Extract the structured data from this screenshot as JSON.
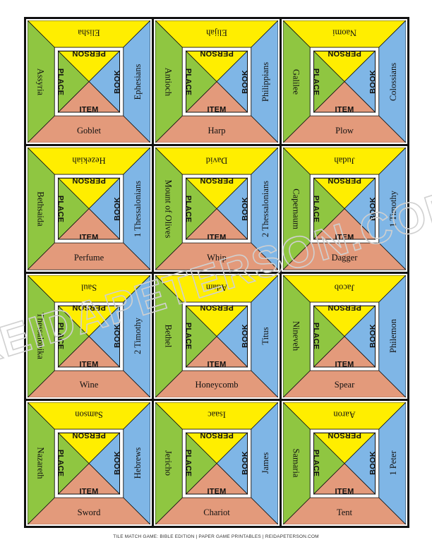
{
  "categories": {
    "person": "PERSON",
    "place": "PLACE",
    "book": "BOOK",
    "item": "ITEM"
  },
  "colors": {
    "person": "#ffee00",
    "place": "#8fc641",
    "book": "#7fb6e6",
    "item": "#e39a7b"
  },
  "tiles": [
    {
      "top": "Elisha",
      "left": "Assyria",
      "right": "Ephesians",
      "bottom": "Goblet"
    },
    {
      "top": "Elijah",
      "left": "Antioch",
      "right": "Philippians",
      "bottom": "Harp"
    },
    {
      "top": "Naomi",
      "left": "Galilee",
      "right": "Colossians",
      "bottom": "Plow"
    },
    {
      "top": "Hezekiah",
      "left": "Bethsaida",
      "right": "1 Thessalonians",
      "bottom": "Perfume"
    },
    {
      "top": "David",
      "left": "Mount of Olives",
      "right": "2 Thessalonians",
      "bottom": "Whip"
    },
    {
      "top": "Judah",
      "left": "Capernaum",
      "right": "1 Timothy",
      "bottom": "Dagger"
    },
    {
      "top": "Saul",
      "left": "Thessalonika",
      "right": "2 Timothy",
      "bottom": "Wine"
    },
    {
      "top": "Adam",
      "left": "Bethel",
      "right": "Titus",
      "bottom": "Honeycomb"
    },
    {
      "top": "Jacob",
      "left": "Nineveh",
      "right": "Philemon",
      "bottom": "Spear"
    },
    {
      "top": "Samson",
      "left": "Nazareth",
      "right": "Hebrews",
      "bottom": "Sword"
    },
    {
      "top": "Isaac",
      "left": "Jericho",
      "right": "James",
      "bottom": "Chariot"
    },
    {
      "top": "Aaron",
      "left": "Samaria",
      "right": "1 Peter",
      "bottom": "Tent"
    }
  ],
  "watermark": "REIDAPETERSON.COM",
  "footer": "TILE MATCH GAME: BIBLE EDITION  | PAPER GAME PRINTABLES | REIDAPETERSON.COM"
}
